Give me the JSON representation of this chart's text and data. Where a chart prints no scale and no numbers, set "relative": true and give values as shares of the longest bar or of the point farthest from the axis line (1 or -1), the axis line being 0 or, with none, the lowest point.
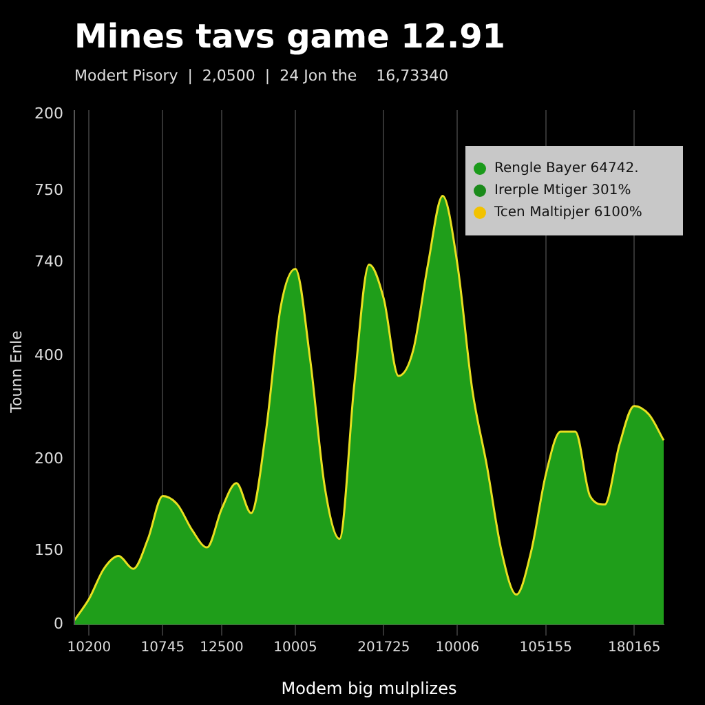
{
  "chart_data": {
    "type": "area",
    "title": "Mines tavs game 12.91",
    "subtitle": "Modert Pisory  |  2,0500  |  24 Jon the    16,73340",
    "xlabel": "Modem big mulplizes",
    "ylabel": "Tounn Enle",
    "relative": true,
    "categories": [
      null,
      "10200",
      null,
      null,
      null,
      null,
      "10745",
      null,
      null,
      null,
      "12500",
      null,
      null,
      null,
      null,
      "10005",
      null,
      null,
      null,
      null,
      null,
      "201725",
      null,
      null,
      null,
      null,
      "10006",
      null,
      null,
      null,
      null,
      null,
      "105155",
      null,
      null,
      null,
      null,
      null,
      "180165",
      null,
      null
    ],
    "series": [
      {
        "color": "#1f9e1a",
        "values": [
          0.01,
          0.06,
          0.13,
          0.16,
          0.13,
          0.2,
          0.3,
          0.28,
          0.22,
          0.18,
          0.27,
          0.33,
          0.26,
          0.45,
          0.74,
          0.83,
          0.62,
          0.32,
          0.2,
          0.56,
          0.84,
          0.76,
          0.58,
          0.64,
          0.84,
          1,
          0.84,
          0.55,
          0.37,
          0.17,
          0.07,
          0.17,
          0.35,
          0.45,
          0.45,
          0.3,
          0.28,
          0.42,
          0.51,
          0.49,
          0.43
        ]
      }
    ],
    "grid": "x",
    "legend": false,
    "annotations": [
      "Rengle Bayer 64742.",
      "Irerple Mtiger 301%",
      "Tcen Maltipjer 6100%",
      "200",
      "750",
      "740",
      "400",
      "200",
      "150",
      "0"
    ]
  }
}
